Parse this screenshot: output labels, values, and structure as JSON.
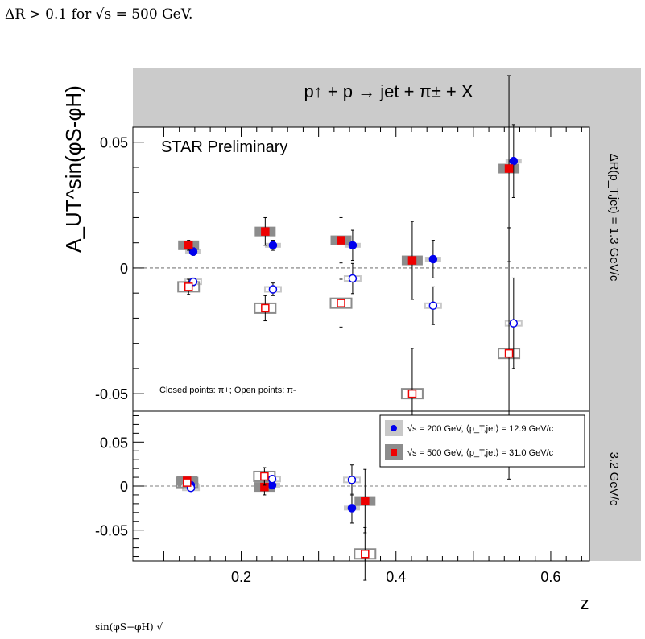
{
  "caption_top": "ΔR > 0.1 for √s = 500 GeV.",
  "caption_bottom": "sin(φS−φH)   √",
  "chart_data": [
    {
      "type": "scatter",
      "panel": "top",
      "title": "p↑ + p → jet + π± + X",
      "ylabel": "A_UT^sin(φS-φH)",
      "right_label": "ΔR(p_T,jet) = 1.3 GeV/c",
      "annotation_main": "STAR Preliminary",
      "annotation_note": "Closed points: π+; Open points: π-",
      "xlim": [
        0.06,
        0.65
      ],
      "ylim": [
        -0.057,
        0.056
      ],
      "y_ticks": [
        0.05,
        0,
        -0.05
      ],
      "y_tick_labels": [
        "0.05",
        "0",
        "-0.05"
      ],
      "grid": false,
      "reference_line_y": 0,
      "series": [
        {
          "name": "√s = 200 GeV, π+",
          "color": "#0000ee",
          "filled": true,
          "marker": "circle",
          "x": [
            0.138,
            0.241,
            0.344,
            0.448,
            0.552
          ],
          "y": [
            0.0065,
            0.009,
            0.009,
            0.0035,
            0.0425
          ],
          "yerr": [
            0.0015,
            0.002,
            0.006,
            0.0075,
            0.0145
          ]
        },
        {
          "name": "√s = 500 GeV, π+",
          "color": "#ee0000",
          "filled": true,
          "marker": "square",
          "x": [
            0.132,
            0.231,
            0.329,
            0.421,
            0.546
          ],
          "y": [
            0.009,
            0.0145,
            0.011,
            0.003,
            0.0395
          ],
          "yerr": [
            0.002,
            0.0055,
            0.009,
            0.0155,
            0.037
          ]
        },
        {
          "name": "√s = 200 GeV, π-",
          "color": "#0000ee",
          "filled": false,
          "marker": "circle",
          "x": [
            0.138,
            0.241,
            0.344,
            0.448,
            0.552
          ],
          "y": [
            -0.0055,
            -0.0085,
            -0.0042,
            -0.015,
            -0.022
          ],
          "yerr": [
            0.0015,
            0.0025,
            0.006,
            0.0075,
            0.018
          ]
        },
        {
          "name": "√s = 500 GeV, π-",
          "color": "#ee0000",
          "filled": false,
          "marker": "square",
          "x": [
            0.132,
            0.231,
            0.329,
            0.421,
            0.546
          ],
          "y": [
            -0.0075,
            -0.016,
            -0.014,
            -0.05,
            -0.034
          ],
          "yerr": [
            0.003,
            0.005,
            0.0095,
            0.018,
            0.05
          ]
        }
      ]
    },
    {
      "type": "scatter",
      "panel": "bottom",
      "xlabel": "z",
      "right_label": "3.2 GeV/c",
      "xlim": [
        0.06,
        0.65
      ],
      "ylim": [
        -0.085,
        0.085
      ],
      "x_ticks": [
        0.2,
        0.4,
        0.6
      ],
      "x_tick_labels": [
        "0.2",
        "0.4",
        "0.6"
      ],
      "y_ticks": [
        0.05,
        0,
        -0.05
      ],
      "y_tick_labels": [
        "0.05",
        "0",
        "-0.05"
      ],
      "legend_position": "top-right",
      "legend": [
        {
          "label": "√s = 200 GeV, ⟨p_T,jet⟩ = 12.9 GeV/c",
          "color": "#0000ee",
          "box": "#c8c8c8"
        },
        {
          "label": "√s = 500 GeV, ⟨p_T,jet⟩ = 31.0 GeV/c",
          "color": "#ee0000",
          "box": "#8c8c8c"
        }
      ],
      "grid": false,
      "reference_line_y": 0,
      "series": [
        {
          "name": "√s = 200 GeV, π+",
          "color": "#0000ee",
          "filled": true,
          "marker": "circle",
          "x": [
            0.135,
            0.24,
            0.343
          ],
          "y": [
            0.001,
            0.001,
            -0.025
          ],
          "yerr": [
            0.003,
            0.004,
            0.017
          ]
        },
        {
          "name": "√s = 500 GeV, π+",
          "color": "#ee0000",
          "filled": true,
          "marker": "square",
          "x": [
            0.13,
            0.23,
            0.36
          ],
          "y": [
            0.006,
            -0.001,
            -0.017
          ],
          "yerr": [
            0.004,
            0.009,
            0.036
          ]
        },
        {
          "name": "√s = 200 GeV, π-",
          "color": "#0000ee",
          "filled": false,
          "marker": "circle",
          "x": [
            0.135,
            0.24,
            0.343
          ],
          "y": [
            -0.002,
            0.008,
            0.007
          ],
          "yerr": [
            0.003,
            0.004,
            0.017
          ]
        },
        {
          "name": "√s = 500 GeV, π-",
          "color": "#ee0000",
          "filled": false,
          "marker": "square",
          "x": [
            0.13,
            0.23,
            0.36
          ],
          "y": [
            0.004,
            0.011,
            -0.077
          ],
          "yerr": [
            0.004,
            0.01,
            0.03
          ]
        }
      ]
    }
  ]
}
